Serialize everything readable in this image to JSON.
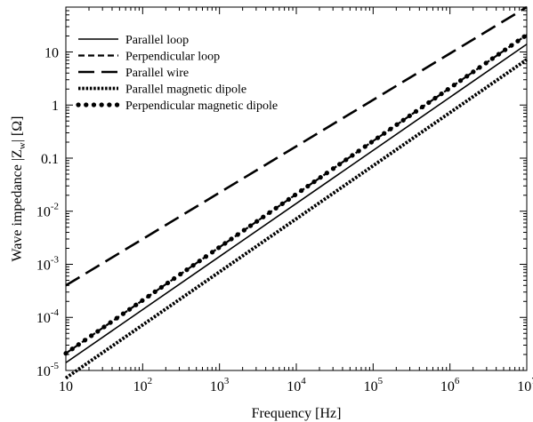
{
  "chart_data": {
    "type": "line",
    "xlabel": "Frequency [Hz]",
    "ylabel": "Wave impedance |Z_w| [Ω]",
    "ylabel_parts": {
      "prefix": "Wave impedance |Z",
      "sub": "w",
      "suffix": "| [Ω]"
    },
    "x_scale": "log",
    "y_scale": "log",
    "xlim": [
      10,
      10000000
    ],
    "ylim": [
      1e-05,
      70
    ],
    "x_ticks": [
      {
        "value": 10,
        "base": "10",
        "exp": ""
      },
      {
        "value": 100,
        "base": "10",
        "exp": "2"
      },
      {
        "value": 1000,
        "base": "10",
        "exp": "3"
      },
      {
        "value": 10000,
        "base": "10",
        "exp": "4"
      },
      {
        "value": 100000,
        "base": "10",
        "exp": "5"
      },
      {
        "value": 1000000,
        "base": "10",
        "exp": "6"
      },
      {
        "value": 10000000,
        "base": "10",
        "exp": "7"
      }
    ],
    "y_ticks": [
      {
        "value": 1e-05,
        "base": "10",
        "exp": "-5"
      },
      {
        "value": 0.0001,
        "base": "10",
        "exp": "-4"
      },
      {
        "value": 0.001,
        "base": "10",
        "exp": "-3"
      },
      {
        "value": 0.01,
        "base": "10",
        "exp": "-2"
      },
      {
        "value": 0.1,
        "base": "0.1",
        "exp": ""
      },
      {
        "value": 1,
        "base": "1",
        "exp": ""
      },
      {
        "value": 10,
        "base": "10",
        "exp": ""
      }
    ],
    "grid": false,
    "legend_position": "top-left",
    "series": [
      {
        "name": "Parallel loop",
        "style": "solid",
        "color": "#000000",
        "x": [
          10,
          10000000
        ],
        "y": [
          1.4e-05,
          14
        ]
      },
      {
        "name": "Perpendicular loop",
        "style": "dashed",
        "color": "#000000",
        "x": [
          10,
          10000000
        ],
        "y": [
          2.1e-05,
          21
        ]
      },
      {
        "name": "Parallel wire",
        "style": "longdash",
        "color": "#000000",
        "x": [
          10,
          10000000
        ],
        "y": [
          0.0004,
          70
        ]
      },
      {
        "name": "Parallel magnetic dipole",
        "style": "dense-dotted",
        "color": "#000000",
        "x": [
          10,
          10000000
        ],
        "y": [
          7.2e-06,
          7.2
        ]
      },
      {
        "name": "Perpendicular magnetic dipole",
        "style": "round-dotted",
        "color": "#000000",
        "x": [
          10,
          10000000
        ],
        "y": [
          2.1e-05,
          21
        ]
      }
    ]
  }
}
